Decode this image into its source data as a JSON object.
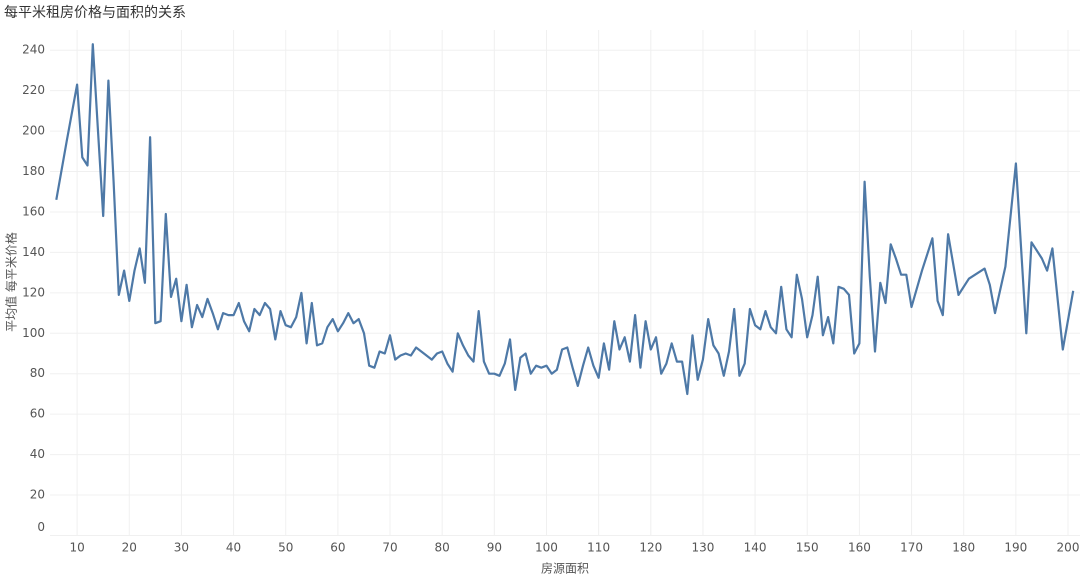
{
  "chart_data": {
    "type": "line",
    "title": "每平米租房价格与面积的关系",
    "x_label": "房源面积",
    "y_label": "平均值 每平米价格",
    "x": [
      6,
      8,
      10,
      11,
      12,
      13,
      14,
      15,
      16,
      17,
      18,
      19,
      20,
      21,
      22,
      23,
      24,
      25,
      26,
      27,
      28,
      29,
      30,
      31,
      32,
      33,
      34,
      35,
      36,
      37,
      38,
      39,
      40,
      41,
      42,
      43,
      44,
      45,
      46,
      47,
      48,
      49,
      50,
      51,
      52,
      53,
      54,
      55,
      56,
      57,
      58,
      59,
      60,
      61,
      62,
      63,
      64,
      65,
      66,
      67,
      68,
      69,
      70,
      71,
      72,
      73,
      74,
      75,
      76,
      77,
      78,
      79,
      80,
      81,
      82,
      83,
      84,
      85,
      86,
      87,
      88,
      89,
      90,
      91,
      92,
      93,
      94,
      95,
      96,
      97,
      98,
      99,
      100,
      101,
      102,
      103,
      104,
      105,
      106,
      107,
      108,
      109,
      110,
      111,
      112,
      113,
      114,
      115,
      116,
      117,
      118,
      119,
      120,
      121,
      122,
      123,
      124,
      125,
      126,
      127,
      128,
      129,
      130,
      131,
      132,
      133,
      134,
      135,
      136,
      137,
      138,
      139,
      140,
      141,
      142,
      143,
      144,
      145,
      146,
      147,
      148,
      149,
      150,
      151,
      152,
      153,
      154,
      155,
      156,
      157,
      158,
      159,
      160,
      161,
      162,
      163,
      164,
      165,
      166,
      167,
      168,
      169,
      170,
      172,
      174,
      175,
      176,
      177,
      179,
      181,
      184,
      185,
      186,
      188,
      190,
      192,
      193,
      195,
      196,
      197,
      199,
      201
    ],
    "series": [
      {
        "name": "平均值 每平米价格",
        "color": "#4e79a7",
        "values": [
          166,
          195,
          223,
          187,
          183,
          243,
          200,
          158,
          225,
          175,
          119,
          131,
          116,
          131,
          142,
          125,
          197,
          105,
          106,
          159,
          118,
          127,
          106,
          124,
          103,
          114,
          108,
          117,
          110,
          102,
          110,
          109,
          109,
          115,
          106,
          101,
          112,
          109,
          115,
          112,
          97,
          111,
          104,
          103,
          108,
          120,
          95,
          115,
          94,
          95,
          103,
          107,
          101,
          105,
          110,
          105,
          107,
          100,
          84,
          83,
          91,
          90,
          99,
          87,
          89,
          90,
          89,
          93,
          91,
          89,
          87,
          90,
          91,
          85,
          81,
          100,
          94,
          89,
          86,
          111,
          86,
          80,
          80,
          79,
          85,
          97,
          72,
          88,
          90,
          80,
          84,
          83,
          84,
          80,
          82,
          92,
          93,
          83,
          74,
          84,
          93,
          84,
          78,
          95,
          82,
          106,
          92,
          98,
          86,
          109,
          83,
          106,
          92,
          98,
          80,
          85,
          95,
          86,
          86,
          70,
          99,
          77,
          87,
          107,
          94,
          90,
          79,
          91,
          112,
          79,
          85,
          112,
          104,
          102,
          111,
          103,
          100,
          123,
          102,
          98,
          129,
          117,
          98,
          109,
          128,
          99,
          108,
          95,
          123,
          122,
          119,
          90,
          95,
          175,
          128,
          91,
          125,
          115,
          144,
          137,
          129,
          129,
          113,
          131,
          147,
          116,
          109,
          149,
          119,
          127,
          132,
          124,
          110,
          133,
          184,
          100,
          145,
          137,
          131,
          142,
          92,
          121
        ]
      }
    ],
    "xlim": [
      4.8,
      202.3
    ],
    "ylim": [
      0,
      250
    ],
    "xticks": [
      10,
      20,
      30,
      40,
      50,
      60,
      70,
      80,
      90,
      100,
      110,
      120,
      130,
      140,
      150,
      160,
      170,
      180,
      190,
      200
    ],
    "yticks": [
      0,
      20,
      40,
      60,
      80,
      100,
      120,
      140,
      160,
      180,
      200,
      220,
      240
    ],
    "grid": true
  }
}
